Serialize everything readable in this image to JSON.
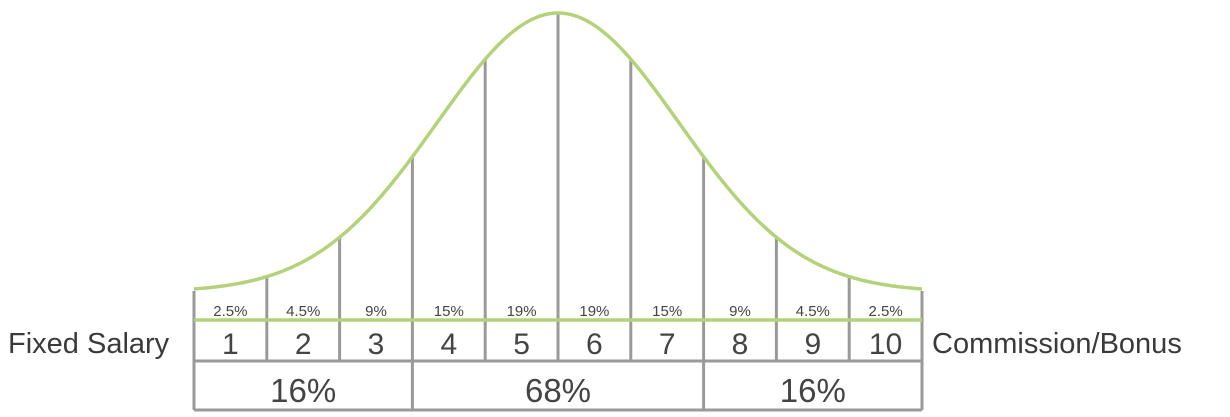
{
  "labels": {
    "left": "Fixed Salary",
    "right": "Commission/Bonus"
  },
  "scale": {
    "bins": [
      {
        "number": "1",
        "percent": "2.5%",
        "value": 2.5
      },
      {
        "number": "2",
        "percent": "4.5%",
        "value": 4.5
      },
      {
        "number": "3",
        "percent": "9%",
        "value": 9
      },
      {
        "number": "4",
        "percent": "15%",
        "value": 15
      },
      {
        "number": "5",
        "percent": "19%",
        "value": 19
      },
      {
        "number": "6",
        "percent": "19%",
        "value": 19
      },
      {
        "number": "7",
        "percent": "15%",
        "value": 15
      },
      {
        "number": "8",
        "percent": "9%",
        "value": 9
      },
      {
        "number": "9",
        "percent": "4.5%",
        "value": 4.5
      },
      {
        "number": "10",
        "percent": "2.5%",
        "value": 2.5
      }
    ],
    "groups": [
      {
        "label": "16%",
        "span_bins": 3
      },
      {
        "label": "68%",
        "span_bins": 4
      },
      {
        "label": "16%",
        "span_bins": 3
      }
    ]
  },
  "colors": {
    "curve": "#b5d27a",
    "lines": "#9a9a9a",
    "text": "#444444"
  }
}
